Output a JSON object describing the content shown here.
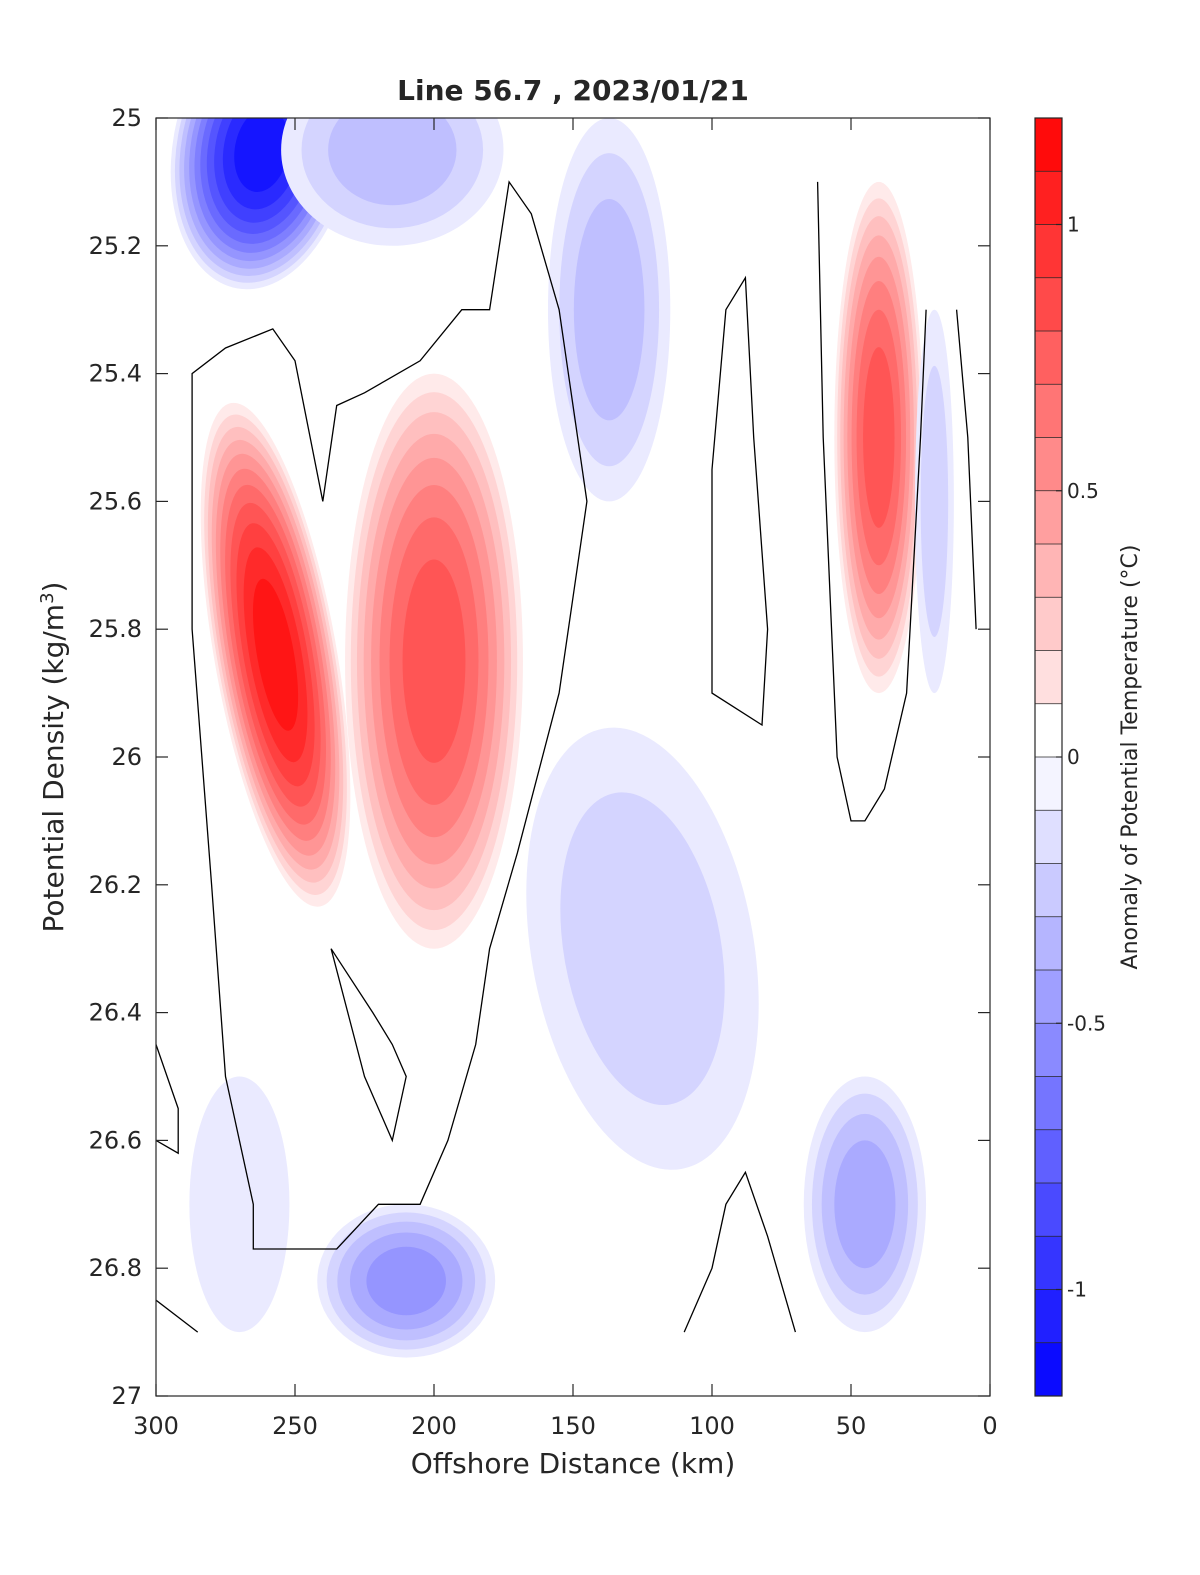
{
  "chart_data": {
    "type": "heatmap",
    "subtype": "filled-contour",
    "title": "Line 56.7 , 2023/01/21",
    "xlabel": "Offshore Distance (km)",
    "ylabel_main": "Potential Density (kg/m",
    "ylabel_sup": "3",
    "ylabel_close": ")",
    "xlim": [
      300,
      0
    ],
    "ylim": [
      25,
      27
    ],
    "x_reversed": true,
    "y_reversed": true,
    "xticks": [
      300,
      250,
      200,
      150,
      100,
      50,
      0
    ],
    "xtick_labels": [
      "300",
      "250",
      "200",
      "150",
      "100",
      "50",
      "0"
    ],
    "yticks": [
      25,
      25.2,
      25.4,
      25.6,
      25.8,
      26,
      26.2,
      26.4,
      26.6,
      26.8,
      27
    ],
    "ytick_labels": [
      "25",
      "25.2",
      "25.4",
      "25.6",
      "25.8",
      "26",
      "26.2",
      "26.4",
      "26.6",
      "26.8",
      "27"
    ],
    "colorbar": {
      "label": "Anomaly of Potential Temperature (°C)",
      "range": [
        -1.2,
        1.2
      ],
      "step": 0.1,
      "ticks": [
        1,
        0.5,
        0,
        -0.5,
        -1
      ],
      "tick_labels": [
        "1",
        "0.5",
        "0",
        "-0.5",
        "-1"
      ],
      "colors": {
        "negative": "#0000ff",
        "zero": "#ffffff",
        "positive": "#ff0000"
      }
    },
    "features": [
      {
        "x": 262,
        "y": 25.05,
        "rx": 32,
        "ry": 0.22,
        "value": -1.15,
        "rot": 10
      },
      {
        "x": 215,
        "y": 25.05,
        "rx": 40,
        "ry": 0.15,
        "value": -0.35,
        "rot": 0
      },
      {
        "x": 137,
        "y": 25.3,
        "rx": 22,
        "ry": 0.3,
        "value": -0.35,
        "rot": 0
      },
      {
        "x": 257,
        "y": 25.84,
        "rx": 22,
        "ry": 0.4,
        "value": 1.15,
        "rot": -10
      },
      {
        "x": 200,
        "y": 25.85,
        "rx": 32,
        "ry": 0.45,
        "value": 0.85,
        "rot": 0
      },
      {
        "x": 40,
        "y": 25.5,
        "rx": 16,
        "ry": 0.4,
        "value": 0.85,
        "rot": 0
      },
      {
        "x": 20,
        "y": 25.6,
        "rx": 7,
        "ry": 0.3,
        "value": -0.3,
        "rot": 0
      },
      {
        "x": 125,
        "y": 26.3,
        "rx": 40,
        "ry": 0.35,
        "value": -0.3,
        "rot": -10
      },
      {
        "x": 210,
        "y": 26.82,
        "rx": 32,
        "ry": 0.12,
        "value": -0.55,
        "rot": 0
      },
      {
        "x": 45,
        "y": 26.7,
        "rx": 22,
        "ry": 0.2,
        "value": -0.45,
        "rot": 0
      },
      {
        "x": 270,
        "y": 26.7,
        "rx": 18,
        "ry": 0.2,
        "value": -0.15,
        "rot": 0
      }
    ],
    "zero_contours": [
      [
        [
          240,
          25.6
        ],
        [
          250,
          25.38
        ],
        [
          258,
          25.33
        ],
        [
          275,
          25.36
        ],
        [
          287,
          25.4
        ],
        [
          287,
          25.8
        ],
        [
          280,
          26.2
        ],
        [
          275,
          26.5
        ],
        [
          265,
          26.7
        ],
        [
          265,
          26.77
        ],
        [
          250,
          26.77
        ],
        [
          235,
          26.77
        ],
        [
          220,
          26.7
        ],
        [
          205,
          26.7
        ],
        [
          195,
          26.6
        ],
        [
          185,
          26.45
        ],
        [
          180,
          26.3
        ],
        [
          170,
          26.15
        ],
        [
          155,
          25.9
        ],
        [
          150,
          25.75
        ],
        [
          145,
          25.6
        ],
        [
          150,
          25.45
        ],
        [
          155,
          25.3
        ],
        [
          165,
          25.15
        ],
        [
          173,
          25.1
        ],
        [
          180,
          25.3
        ],
        [
          190,
          25.3
        ],
        [
          205,
          25.38
        ],
        [
          225,
          25.43
        ],
        [
          235,
          25.45
        ],
        [
          240,
          25.6
        ]
      ],
      [
        [
          237,
          26.3
        ],
        [
          222,
          26.4
        ],
        [
          215,
          26.45
        ],
        [
          210,
          26.5
        ],
        [
          215,
          26.6
        ],
        [
          225,
          26.5
        ],
        [
          237,
          26.3
        ]
      ],
      [
        [
          100,
          25.55
        ],
        [
          95,
          25.3
        ],
        [
          88,
          25.25
        ],
        [
          85,
          25.5
        ],
        [
          80,
          25.8
        ],
        [
          82,
          25.95
        ],
        [
          100,
          25.9
        ],
        [
          100,
          25.55
        ]
      ],
      [
        [
          62,
          25.1
        ],
        [
          60,
          25.5
        ],
        [
          55,
          26.0
        ],
        [
          50,
          26.1
        ],
        [
          45,
          26.1
        ],
        [
          38,
          26.05
        ],
        [
          30,
          25.9
        ],
        [
          25,
          25.5
        ],
        [
          23,
          25.3
        ]
      ],
      [
        [
          110,
          26.9
        ],
        [
          100,
          26.8
        ],
        [
          95,
          26.7
        ],
        [
          88,
          26.65
        ],
        [
          80,
          26.75
        ],
        [
          70,
          26.9
        ]
      ],
      [
        [
          300,
          26.85
        ],
        [
          285,
          26.9
        ]
      ],
      [
        [
          300,
          26.45
        ],
        [
          292,
          26.55
        ],
        [
          292,
          26.62
        ],
        [
          300,
          26.6
        ]
      ],
      [
        [
          12,
          25.3
        ],
        [
          8,
          25.5
        ],
        [
          5,
          25.8
        ]
      ]
    ]
  }
}
